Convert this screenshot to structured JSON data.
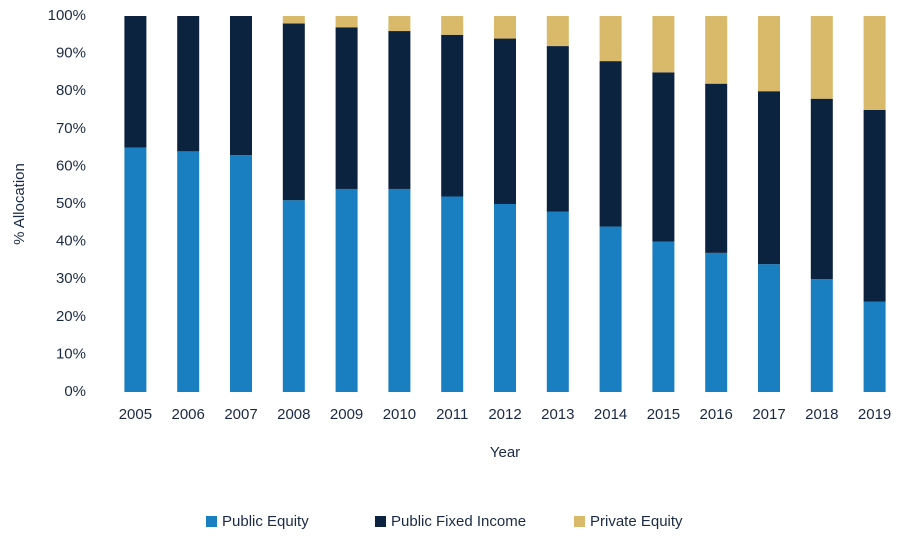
{
  "chart_data": {
    "type": "stacked_bar",
    "categories": [
      "2005",
      "2006",
      "2007",
      "2008",
      "2009",
      "2010",
      "2011",
      "2012",
      "2013",
      "2014",
      "2015",
      "2016",
      "2017",
      "2018",
      "2019"
    ],
    "series": [
      {
        "name": "Public Equity",
        "color": "#1a7fc1",
        "values": [
          65,
          64,
          63,
          51,
          54,
          54,
          52,
          50,
          48,
          44,
          40,
          37,
          34,
          30,
          24
        ]
      },
      {
        "name": "Public Fixed Income",
        "color": "#0c2340",
        "values": [
          35,
          36,
          37,
          47,
          43,
          42,
          43,
          44,
          44,
          44,
          45,
          45,
          46,
          48,
          51
        ]
      },
      {
        "name": "Private Equity",
        "color": "#d9b96a",
        "values": [
          0,
          0,
          0,
          2,
          3,
          4,
          5,
          6,
          8,
          12,
          15,
          18,
          20,
          22,
          25
        ]
      }
    ],
    "ylim": [
      0,
      100
    ],
    "yticks": [
      {
        "value": 0,
        "label": "0%"
      },
      {
        "value": 10,
        "label": "10%"
      },
      {
        "value": 20,
        "label": "20%"
      },
      {
        "value": 30,
        "label": "30%"
      },
      {
        "value": 40,
        "label": "40%"
      },
      {
        "value": 50,
        "label": "50%"
      },
      {
        "value": 60,
        "label": "60%"
      },
      {
        "value": 70,
        "label": "70%"
      },
      {
        "value": 80,
        "label": "80%"
      },
      {
        "value": 90,
        "label": "90%"
      },
      {
        "value": 100,
        "label": "100%"
      }
    ],
    "y_label": "% Allocation",
    "x_label": "Year",
    "legend": "bottom"
  }
}
